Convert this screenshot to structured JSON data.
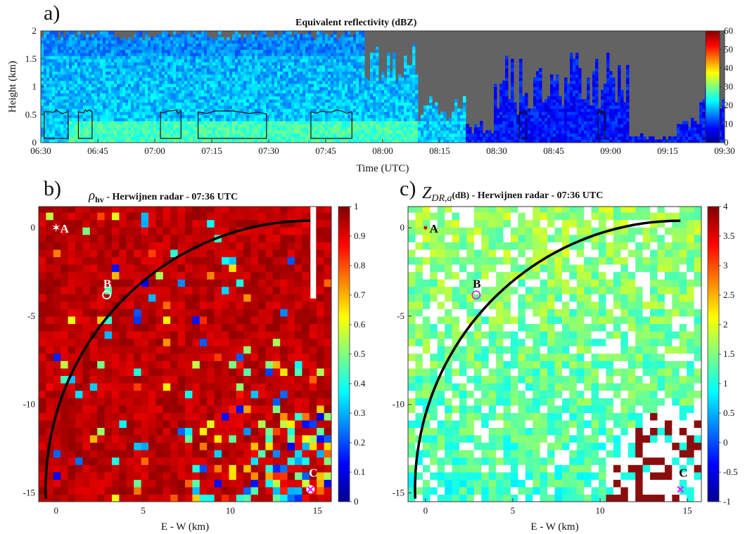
{
  "panel_a": {
    "letter": "a)",
    "chart_data": {
      "type": "heatmap",
      "title": "Equivalent reflectivity (dBZ)",
      "xlabel": "Time (UTC)",
      "ylabel": "Height (km)",
      "x_ticks": [
        "06:30",
        "06:45",
        "07:00",
        "07:15",
        "07:30",
        "07:45",
        "08:00",
        "08:15",
        "08:30",
        "08:45",
        "09:00",
        "09:15",
        "09:30"
      ],
      "y_ticks": [
        "0",
        "0.5",
        "1",
        "1.5",
        "2"
      ],
      "ylim": [
        0,
        2
      ],
      "colorbar": {
        "min": 0,
        "max": 60,
        "ticks": [
          "60",
          "50",
          "40",
          "30",
          "20",
          "10",
          "0"
        ]
      },
      "contour_level_km": 0.5
    }
  },
  "panel_b": {
    "letter": "b)",
    "title_symbol": "ρ",
    "title_sub": "hv",
    "title_rest": " -  Herwijnen radar  -  07:36 UTC",
    "chart_data": {
      "type": "heatmap",
      "xlabel": "E - W (km)",
      "ylabel": "",
      "x_ticks": [
        "0",
        "5",
        "10",
        "15"
      ],
      "y_ticks": [
        "0",
        "-5",
        "-10",
        "-15"
      ],
      "xlim": [
        -1,
        15.8
      ],
      "ylim": [
        -15.5,
        1.2
      ],
      "colorbar": {
        "min": 0,
        "max": 1,
        "ticks": [
          "1",
          "0.9",
          "0.8",
          "0.7",
          "0.6",
          "0.5",
          "0.4",
          "0.3",
          "0.2",
          "0.1",
          "0"
        ]
      },
      "markers": [
        {
          "label": "A",
          "x": 0.0,
          "y": 0.0,
          "symbol": "star"
        },
        {
          "label": "B",
          "x": 2.9,
          "y": -3.8,
          "symbol": "circle"
        },
        {
          "label": "C",
          "x": 14.6,
          "y": -14.8,
          "symbol": "cross"
        }
      ]
    }
  },
  "panel_c": {
    "letter": "c)",
    "title_symbol": "Z",
    "title_sub": "DR,a",
    "title_unit": "(dB)",
    "title_rest": "  -  Herwijnen radar  -  07:36 UTC",
    "chart_data": {
      "type": "heatmap",
      "xlabel": "E - W (km)",
      "ylabel": "",
      "x_ticks": [
        "0",
        "5",
        "10",
        "15"
      ],
      "y_ticks": [
        "0",
        "-5",
        "-10",
        "-15"
      ],
      "xlim": [
        -1,
        15.8
      ],
      "ylim": [
        -15.5,
        1.2
      ],
      "colorbar": {
        "min": -1,
        "max": 4,
        "ticks": [
          "4",
          "3.5",
          "3",
          "2.5",
          "2",
          "1.5",
          "1",
          "0.5",
          "0",
          "-0.5",
          "-1"
        ]
      },
      "markers": [
        {
          "label": "A",
          "x": 0.0,
          "y": 0.0,
          "symbol": "dot"
        },
        {
          "label": "B",
          "x": 2.9,
          "y": -3.8,
          "symbol": "circle"
        },
        {
          "label": "C",
          "x": 14.6,
          "y": -14.8,
          "symbol": "cross"
        }
      ]
    }
  }
}
